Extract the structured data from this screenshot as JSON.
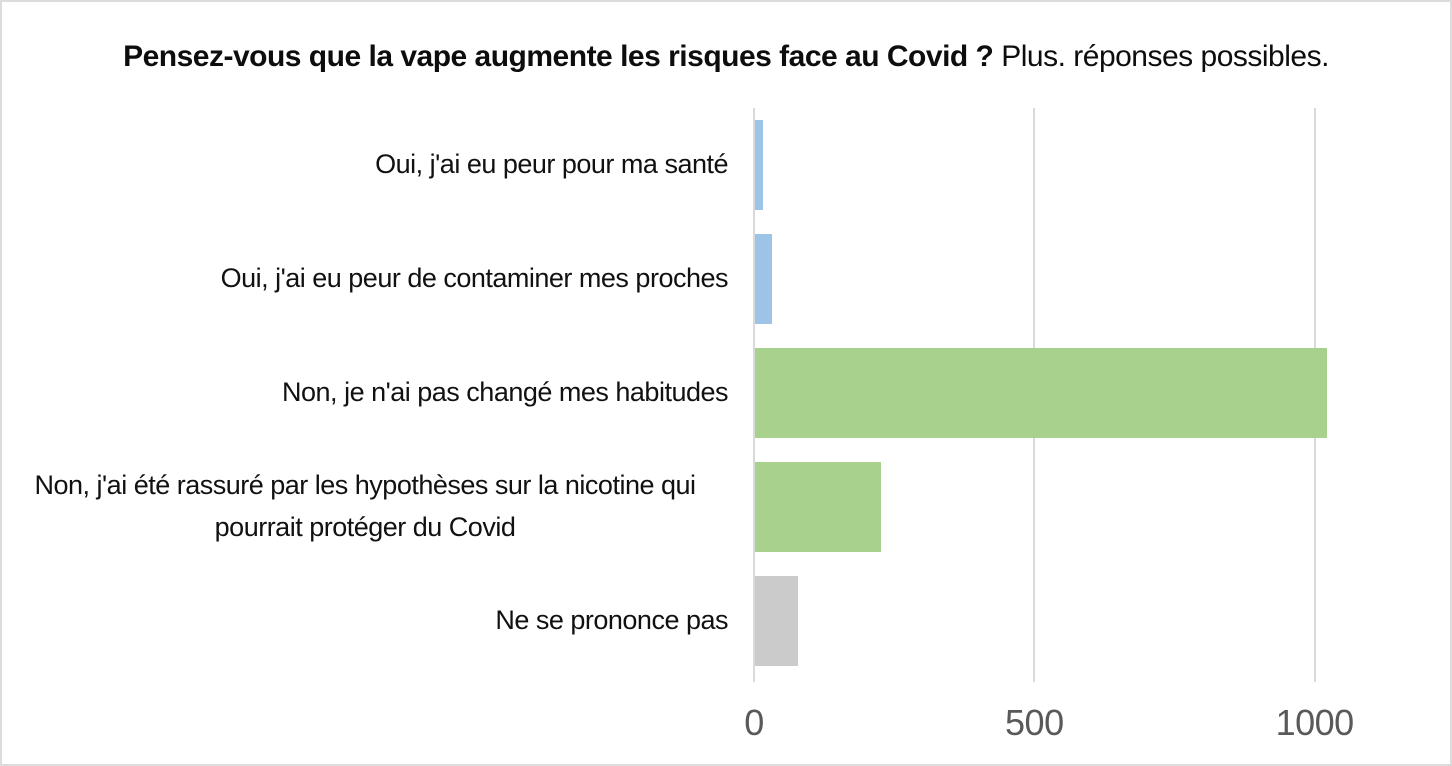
{
  "chart_data": {
    "type": "bar",
    "orientation": "horizontal",
    "title": "Pensez-vous que la vape augmente les risques face au Covid ?",
    "subtitle": "Plus. réponses possibles.",
    "categories": [
      "Oui, j'ai eu peur pour ma santé",
      "Oui, j'ai eu peur de contaminer mes proches",
      "Non, je n'ai pas changé mes habitudes",
      "Non, j'ai été rassuré par les hypothèses sur la nicotine qui pourrait protéger du Covid",
      "Ne se prononce pas"
    ],
    "values": [
      15,
      31,
      1020,
      225,
      77
    ],
    "bar_colors": [
      "#9DC3E6",
      "#9DC3E6",
      "#A9D18E",
      "#A9D18E",
      "#CBCBCB"
    ],
    "x_ticks": [
      0,
      500,
      1000
    ],
    "xlim": [
      0,
      1220
    ],
    "grid": "vertical-gridlines",
    "legend": "none",
    "xlabel": "",
    "ylabel": ""
  },
  "colors": {
    "blue_bar": "#9DC3E6",
    "green_bar": "#A9D18E",
    "gray_bar": "#CBCBCB",
    "gridline": "#DADADA",
    "tick_text": "#595959",
    "label_text": "#111111",
    "canvas_border": "#DCDCDC"
  }
}
